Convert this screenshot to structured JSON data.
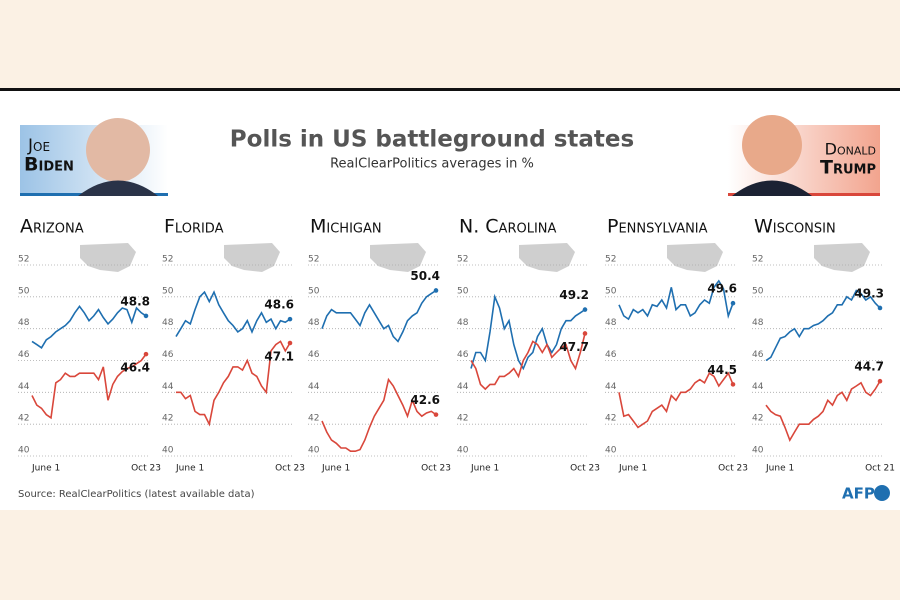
{
  "header": {
    "title": "Polls in US battleground states",
    "subtitle": "RealClearPolitics averages in %",
    "left_first": "Joe",
    "left_last": "Biden",
    "right_first": "Donald",
    "right_last": "Trump"
  },
  "footer": {
    "source": "Source: RealClearPolitics (latest available data)",
    "logo": "AFP"
  },
  "chart_data": [
    {
      "type": "line",
      "title": "Arizona",
      "categories": [
        "June 1",
        null,
        null,
        null,
        null,
        null,
        null,
        null,
        null,
        null,
        null,
        null,
        null,
        null,
        null,
        null,
        null,
        null,
        null,
        null,
        null,
        null,
        null,
        null,
        "Oct 23"
      ],
      "series": [
        {
          "color": "#1f6fb0",
          "values": [
            47.2,
            47,
            46.8,
            47.3,
            47.5,
            47.8,
            48,
            48.2,
            48.5,
            49,
            49.4,
            49,
            48.5,
            48.8,
            49.2,
            48.7,
            48.3,
            48.6,
            49,
            49.3,
            49.2,
            48.4,
            49.3,
            49,
            48.8
          ]
        },
        {
          "color": "#d9473b",
          "values": [
            43.8,
            43.2,
            43,
            42.6,
            42.4,
            44.6,
            44.8,
            45.2,
            45,
            45,
            45.2,
            45.2,
            45.2,
            45.2,
            44.8,
            45.6,
            43.5,
            44.5,
            45,
            45.3,
            45.5,
            45.6,
            45.8,
            46,
            46.4
          ]
        }
      ],
      "ylim": [
        40,
        52
      ],
      "yticks": [
        40,
        42,
        44,
        46,
        48,
        50,
        52
      ],
      "grid": true
    },
    {
      "type": "line",
      "title": "Florida",
      "categories": [
        "June 1",
        null,
        null,
        null,
        null,
        null,
        null,
        null,
        null,
        null,
        null,
        null,
        null,
        null,
        null,
        null,
        null,
        null,
        null,
        null,
        null,
        null,
        null,
        null,
        "Oct 23"
      ],
      "series": [
        {
          "color": "#1f6fb0",
          "values": [
            47.5,
            48,
            48.5,
            48.3,
            49.2,
            50,
            50.3,
            49.7,
            50.3,
            49.5,
            49,
            48.5,
            48.2,
            47.8,
            48,
            48.5,
            47.8,
            48.5,
            49,
            48.4,
            48.6,
            48,
            48.5,
            48.4,
            48.6
          ]
        },
        {
          "color": "#d9473b",
          "values": [
            44,
            44,
            43.6,
            43.8,
            42.8,
            42.6,
            42.6,
            42,
            43.5,
            44,
            44.6,
            45,
            45.6,
            45.6,
            45.4,
            46,
            45.2,
            45,
            44.4,
            44,
            46.6,
            47,
            47.2,
            46.6,
            47.1
          ]
        }
      ],
      "ylim": [
        40,
        52
      ],
      "yticks": [
        40,
        42,
        44,
        46,
        48,
        50,
        52
      ],
      "grid": true
    },
    {
      "type": "line",
      "title": "Michigan",
      "categories": [
        "June 1",
        null,
        null,
        null,
        null,
        null,
        null,
        null,
        null,
        null,
        null,
        null,
        null,
        null,
        null,
        null,
        null,
        null,
        null,
        null,
        null,
        null,
        null,
        null,
        "Oct 23"
      ],
      "series": [
        {
          "color": "#1f6fb0",
          "values": [
            48,
            48.8,
            49.2,
            49,
            49,
            49,
            49,
            48.6,
            48.2,
            49,
            49.5,
            49,
            48.5,
            48,
            48.2,
            47.5,
            47.2,
            47.8,
            48.5,
            48.8,
            49,
            49.6,
            50,
            50.2,
            50.4
          ]
        },
        {
          "color": "#d9473b",
          "values": [
            42.2,
            41.5,
            41,
            40.8,
            40.5,
            40.5,
            40.3,
            40.3,
            40.4,
            41,
            41.8,
            42.5,
            43,
            43.5,
            44.8,
            44.4,
            43.8,
            43.2,
            42.5,
            43.5,
            42.8,
            42.5,
            42.7,
            42.8,
            42.6
          ]
        }
      ],
      "ylim": [
        40,
        52
      ],
      "yticks": [
        40,
        42,
        44,
        46,
        48,
        50,
        52
      ],
      "grid": true
    },
    {
      "type": "line",
      "title": "N. Carolina",
      "categories": [
        "June 1",
        null,
        null,
        null,
        null,
        null,
        null,
        null,
        null,
        null,
        null,
        null,
        null,
        null,
        null,
        null,
        null,
        null,
        null,
        null,
        null,
        null,
        null,
        null,
        "Oct 23"
      ],
      "series": [
        {
          "color": "#1f6fb0",
          "values": [
            45.5,
            46.5,
            46.5,
            46,
            47.8,
            50,
            49.3,
            48,
            48.5,
            47,
            46,
            45.5,
            46.2,
            46.5,
            47.5,
            48,
            47,
            46.5,
            47,
            48,
            48.5,
            48.5,
            48.8,
            49,
            49.2
          ]
        },
        {
          "color": "#d9473b",
          "values": [
            46,
            45.5,
            44.5,
            44.2,
            44.5,
            44.5,
            45,
            45,
            45.2,
            45.5,
            45,
            46,
            46.5,
            47.2,
            47,
            46.5,
            47,
            46.2,
            46.5,
            46.8,
            47,
            46,
            45.5,
            46.5,
            47.7
          ]
        }
      ],
      "ylim": [
        40,
        52
      ],
      "yticks": [
        40,
        42,
        44,
        46,
        48,
        50,
        52
      ],
      "grid": true
    },
    {
      "type": "line",
      "title": "Pennsylvania",
      "categories": [
        "June 1",
        null,
        null,
        null,
        null,
        null,
        null,
        null,
        null,
        null,
        null,
        null,
        null,
        null,
        null,
        null,
        null,
        null,
        null,
        null,
        null,
        null,
        null,
        null,
        "Oct 23"
      ],
      "series": [
        {
          "color": "#1f6fb0",
          "values": [
            49.5,
            48.8,
            48.6,
            49.2,
            49,
            49.2,
            48.8,
            49.5,
            49.4,
            49.8,
            49.3,
            50.6,
            49.2,
            49.5,
            49.5,
            48.8,
            49,
            49.5,
            49.8,
            49.6,
            50.6,
            51,
            50.5,
            48.8,
            49.6
          ]
        },
        {
          "color": "#d9473b",
          "values": [
            44,
            42.5,
            42.6,
            42.2,
            41.8,
            42,
            42.2,
            42.8,
            43,
            43.2,
            42.8,
            43.8,
            43.5,
            44,
            44,
            44.2,
            44.6,
            44.8,
            44.6,
            45.2,
            45,
            44.4,
            44.8,
            45.2,
            44.5
          ]
        }
      ],
      "ylim": [
        40,
        52
      ],
      "yticks": [
        40,
        42,
        44,
        46,
        48,
        50,
        52
      ],
      "grid": true
    },
    {
      "type": "line",
      "title": "Wisconsin",
      "categories": [
        "June 1",
        null,
        null,
        null,
        null,
        null,
        null,
        null,
        null,
        null,
        null,
        null,
        null,
        null,
        null,
        null,
        null,
        null,
        null,
        null,
        null,
        null,
        null,
        null,
        "Oct 21"
      ],
      "series": [
        {
          "color": "#1f6fb0",
          "values": [
            46,
            46.2,
            46.8,
            47.4,
            47.5,
            47.8,
            48,
            47.5,
            48,
            48,
            48.2,
            48.3,
            48.5,
            48.8,
            49,
            49.5,
            49.5,
            50,
            49.8,
            50.4,
            50.2,
            49.8,
            50,
            49.6,
            49.3
          ]
        },
        {
          "color": "#d9473b",
          "values": [
            43.2,
            42.8,
            42.6,
            42.5,
            41.8,
            41,
            41.5,
            42,
            42,
            42,
            42.3,
            42.5,
            42.8,
            43.5,
            43.2,
            43.8,
            44,
            43.5,
            44.2,
            44.4,
            44.6,
            44,
            43.8,
            44.2,
            44.7
          ]
        }
      ],
      "ylim": [
        40,
        52
      ],
      "yticks": [
        40,
        42,
        44,
        46,
        48,
        50,
        52
      ],
      "grid": true
    }
  ]
}
